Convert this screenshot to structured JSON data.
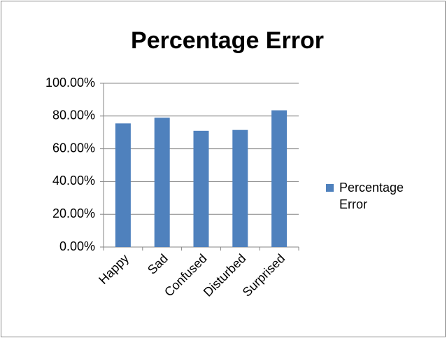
{
  "chart_data": {
    "type": "bar",
    "title": "Percentage Error",
    "categories": [
      "Happy",
      "Sad",
      "Confused",
      "Disturbed",
      "Surprised"
    ],
    "series": [
      {
        "name": "Percentage Error",
        "color": "#4f81bd",
        "values": [
          75.5,
          79,
          71,
          71.5,
          83.5
        ]
      }
    ],
    "ylim": [
      0,
      100
    ],
    "yticks": [
      {
        "value": 0,
        "label": "0.00%"
      },
      {
        "value": 20,
        "label": "20.00%"
      },
      {
        "value": 40,
        "label": "40.00%"
      },
      {
        "value": 60,
        "label": "60.00%"
      },
      {
        "value": 80,
        "label": "80.00%"
      },
      {
        "value": 100,
        "label": "100.00%"
      }
    ],
    "grid": true,
    "legend": "right"
  }
}
